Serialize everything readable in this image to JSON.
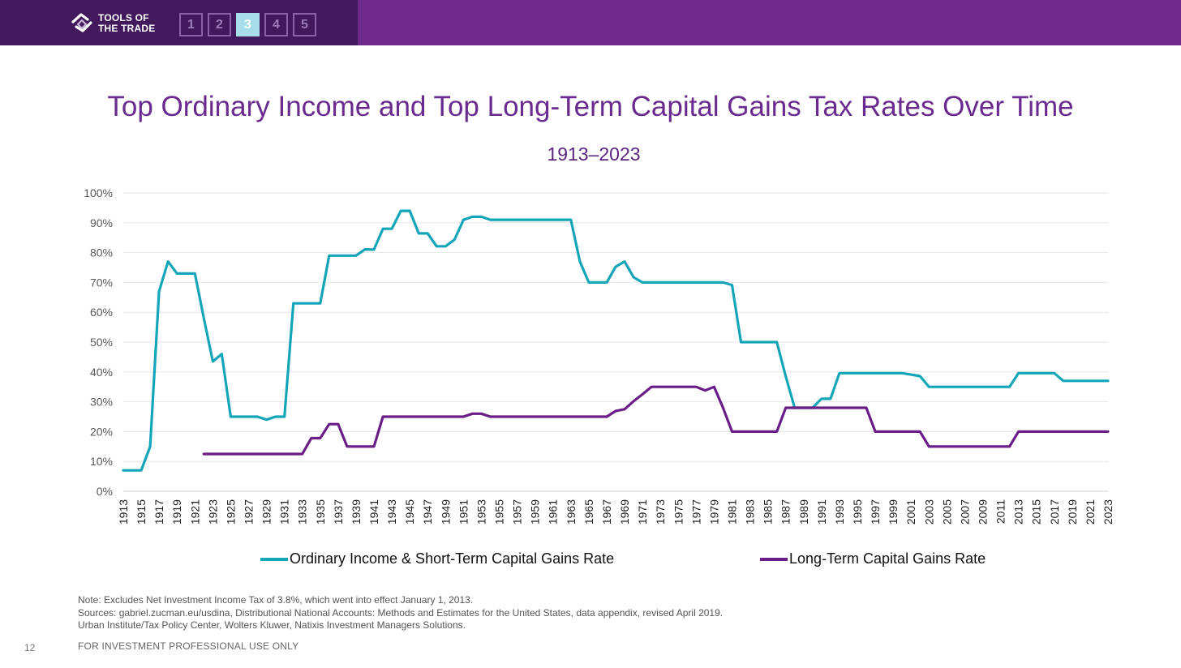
{
  "header": {
    "logo_line1": "TOOLS OF",
    "logo_line2": "THE TRADE",
    "steps": [
      "1",
      "2",
      "3",
      "4",
      "5"
    ],
    "active_step": "3",
    "colors": {
      "bar": "#702a8c",
      "bar_dark": "#43195e",
      "active_step": "#a7dde8"
    }
  },
  "slide": {
    "title": "Top Ordinary Income and Top Long-Term Capital Gains Tax Rates Over Time",
    "subtitle": "1913–2023",
    "note": "Note: Excludes Net Investment Income Tax of 3.8%, which went into effect January 1, 2013.",
    "sources_line1": "Sources: gabriel.zucman.eu/usdina, Distributional National Accounts: Methods and Estimates for the United States, data appendix, revised April 2019.",
    "sources_line2": "Urban Institute/Tax Policy Center, Wolters Kluwer, Natixis Investment Managers Solutions.",
    "page_number": "12",
    "footer": "FOR INVESTMENT PROFESSIONAL USE ONLY"
  },
  "chart_data": {
    "type": "line",
    "title": "Top Ordinary Income and Top Long-Term Capital Gains Tax Rates Over Time",
    "subtitle": "1913–2023",
    "xlabel": "",
    "ylabel": "",
    "xlim": [
      1913,
      2023
    ],
    "ylim": [
      0,
      100
    ],
    "y_ticks": [
      0,
      10,
      20,
      30,
      40,
      50,
      60,
      70,
      80,
      90,
      100
    ],
    "y_tick_labels": [
      "0%",
      "10%",
      "20%",
      "30%",
      "40%",
      "50%",
      "60%",
      "70%",
      "80%",
      "90%",
      "100%"
    ],
    "x_ticks": [
      1913,
      1915,
      1917,
      1919,
      1921,
      1923,
      1925,
      1927,
      1929,
      1931,
      1933,
      1935,
      1937,
      1939,
      1941,
      1943,
      1945,
      1947,
      1949,
      1951,
      1953,
      1955,
      1957,
      1959,
      1961,
      1963,
      1965,
      1967,
      1969,
      1971,
      1973,
      1975,
      1977,
      1979,
      1981,
      1983,
      1985,
      1987,
      1989,
      1991,
      1993,
      1995,
      1997,
      1999,
      2001,
      2003,
      2005,
      2007,
      2009,
      2011,
      2013,
      2015,
      2017,
      2019,
      2021,
      2023
    ],
    "grid": true,
    "legend_position": "bottom",
    "series": [
      {
        "name": "Ordinary Income & Short-Term Capital Gains Rate",
        "color": "#14a6b8",
        "x": [
          1913,
          1914,
          1915,
          1916,
          1917,
          1918,
          1919,
          1920,
          1921,
          1922,
          1923,
          1924,
          1925,
          1926,
          1927,
          1928,
          1929,
          1930,
          1931,
          1932,
          1933,
          1934,
          1935,
          1936,
          1937,
          1938,
          1939,
          1940,
          1941,
          1942,
          1943,
          1944,
          1945,
          1946,
          1947,
          1948,
          1949,
          1950,
          1951,
          1952,
          1953,
          1954,
          1955,
          1956,
          1957,
          1958,
          1959,
          1960,
          1961,
          1962,
          1963,
          1964,
          1965,
          1966,
          1967,
          1968,
          1969,
          1970,
          1971,
          1972,
          1973,
          1974,
          1975,
          1976,
          1977,
          1978,
          1979,
          1980,
          1981,
          1982,
          1983,
          1984,
          1985,
          1986,
          1987,
          1988,
          1989,
          1990,
          1991,
          1992,
          1993,
          1994,
          1995,
          1996,
          1997,
          1998,
          1999,
          2000,
          2001,
          2002,
          2003,
          2004,
          2005,
          2006,
          2007,
          2008,
          2009,
          2010,
          2011,
          2012,
          2013,
          2014,
          2015,
          2016,
          2017,
          2018,
          2019,
          2020,
          2021,
          2022,
          2023
        ],
        "values": [
          7,
          7,
          7,
          15,
          67,
          77,
          73,
          73,
          73,
          58,
          43.5,
          46,
          25,
          25,
          25,
          25,
          24,
          25,
          25,
          63,
          63,
          63,
          63,
          79,
          79,
          79,
          79,
          81.1,
          81,
          88,
          88,
          94,
          94,
          86.45,
          86.45,
          82.13,
          82.13,
          84.36,
          91,
          92,
          92,
          91,
          91,
          91,
          91,
          91,
          91,
          91,
          91,
          91,
          91,
          77,
          70,
          70,
          70,
          75.25,
          77,
          71.75,
          70,
          70,
          70,
          70,
          70,
          70,
          70,
          70,
          70,
          70,
          69.13,
          50,
          50,
          50,
          50,
          50,
          38.5,
          28,
          28,
          28,
          31,
          31,
          39.6,
          39.6,
          39.6,
          39.6,
          39.6,
          39.6,
          39.6,
          39.6,
          39.1,
          38.6,
          35,
          35,
          35,
          35,
          35,
          35,
          35,
          35,
          35,
          35,
          39.6,
          39.6,
          39.6,
          39.6,
          39.6,
          37,
          37,
          37,
          37,
          37,
          37
        ]
      },
      {
        "name": "Long-Term Capital Gains Rate",
        "color": "#6a1d86",
        "x": [
          1922,
          1923,
          1924,
          1925,
          1926,
          1927,
          1928,
          1929,
          1930,
          1931,
          1932,
          1933,
          1934,
          1935,
          1936,
          1937,
          1938,
          1939,
          1940,
          1941,
          1942,
          1943,
          1944,
          1945,
          1946,
          1947,
          1948,
          1949,
          1950,
          1951,
          1952,
          1953,
          1954,
          1955,
          1956,
          1957,
          1958,
          1959,
          1960,
          1961,
          1962,
          1963,
          1964,
          1965,
          1966,
          1967,
          1968,
          1969,
          1970,
          1971,
          1972,
          1973,
          1974,
          1975,
          1976,
          1977,
          1978,
          1979,
          1980,
          1981,
          1982,
          1983,
          1984,
          1985,
          1986,
          1987,
          1988,
          1989,
          1990,
          1991,
          1992,
          1993,
          1994,
          1995,
          1996,
          1997,
          1998,
          1999,
          2000,
          2001,
          2002,
          2003,
          2004,
          2005,
          2006,
          2007,
          2008,
          2009,
          2010,
          2011,
          2012,
          2013,
          2014,
          2015,
          2016,
          2017,
          2018,
          2019,
          2020,
          2021,
          2022,
          2023
        ],
        "values": [
          12.5,
          12.5,
          12.5,
          12.5,
          12.5,
          12.5,
          12.5,
          12.5,
          12.5,
          12.5,
          12.5,
          12.5,
          17.8,
          17.8,
          22.5,
          22.5,
          15,
          15,
          15,
          15,
          25,
          25,
          25,
          25,
          25,
          25,
          25,
          25,
          25,
          25,
          26,
          26,
          25,
          25,
          25,
          25,
          25,
          25,
          25,
          25,
          25,
          25,
          25,
          25,
          25,
          25,
          26.9,
          27.5,
          30.2,
          32.5,
          35,
          35,
          35,
          35,
          35,
          35,
          33.8,
          35,
          28,
          20,
          20,
          20,
          20,
          20,
          20,
          28,
          28,
          28,
          28,
          28,
          28,
          28,
          28,
          28,
          28,
          20,
          20,
          20,
          20,
          20,
          20,
          15,
          15,
          15,
          15,
          15,
          15,
          15,
          15,
          15,
          15,
          20,
          20,
          20,
          20,
          20,
          20,
          20,
          20,
          20,
          20,
          20
        ]
      }
    ]
  }
}
